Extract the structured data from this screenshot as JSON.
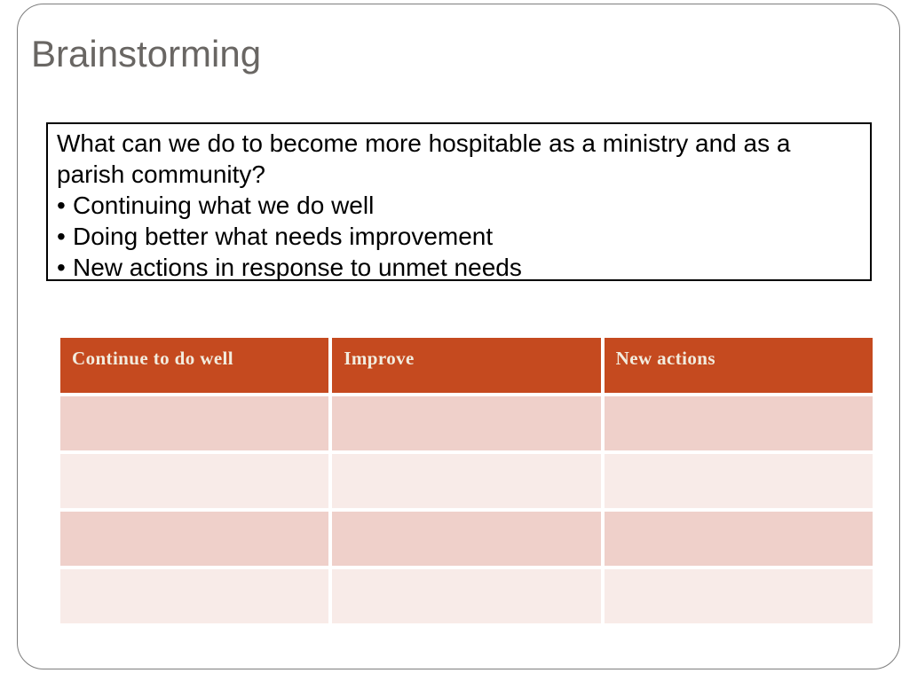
{
  "slide": {
    "title": "Brainstorming",
    "question_box": {
      "intro": "What can we do to become more hospitable as a ministry and as a parish community?",
      "bullet_glyph": "•",
      "bullets": [
        "Continuing what we do well",
        "Doing better what needs improvement",
        "New actions in response to unmet needs"
      ]
    },
    "table": {
      "headers": [
        "Continue to do well",
        "Improve",
        "New actions"
      ],
      "rows": [
        [
          "",
          "",
          ""
        ],
        [
          "",
          "",
          ""
        ],
        [
          "",
          "",
          ""
        ],
        [
          "",
          "",
          ""
        ]
      ]
    },
    "colors": {
      "header_bg": "#c54a1f",
      "header_text": "#f2ecde",
      "row_dark": "#efd0ca",
      "row_light": "#f8ebe8",
      "title_text": "#696663",
      "frame_border": "#7d7d7d",
      "box_border": "#000000"
    }
  }
}
